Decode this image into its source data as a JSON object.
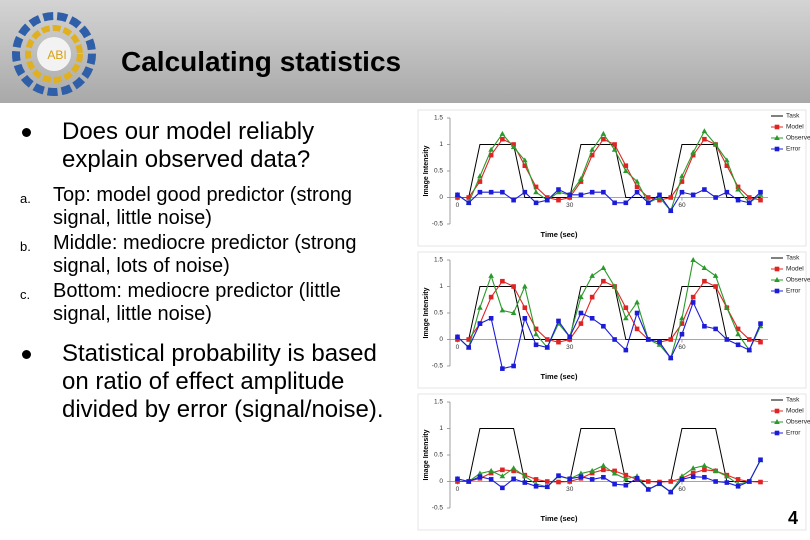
{
  "header": {
    "title": "Calculating statistics",
    "logo": "ABI"
  },
  "bullets": [
    {
      "text": "Does our model reliably explain observed data?",
      "items": [
        {
          "marker": "a.",
          "text": "Top: model good predictor (strong signal, little noise)"
        },
        {
          "marker": "b.",
          "text": "Middle: mediocre predictor (strong signal, lots of noise)"
        },
        {
          "marker": "c.",
          "text": "Bottom: mediocre predictor (little signal, little noise)"
        }
      ]
    },
    {
      "text": "Statistical probability is based on ratio of effect amplitude divided by error (signal/noise).",
      "items": []
    }
  ],
  "page_number": "4",
  "charts": [
    {
      "type": "line",
      "ylabel": "Image Intensity",
      "xlabel": "Time (sec)",
      "xlim": [
        -2,
        83
      ],
      "ylim": [
        -0.5,
        1.5
      ],
      "xticks": [
        0,
        30,
        60
      ],
      "yticks": [
        1.5,
        1,
        0.5,
        0,
        -0.5
      ],
      "x": [
        0,
        3,
        6,
        9,
        12,
        15,
        18,
        21,
        24,
        27,
        30,
        33,
        36,
        39,
        42,
        45,
        48,
        51,
        54,
        57,
        60,
        63,
        66,
        69,
        72,
        75,
        78,
        81
      ],
      "series": [
        {
          "name": "Task",
          "color": "#000000",
          "marker": "none",
          "values": [
            0,
            0,
            1,
            1,
            1,
            1,
            0,
            0,
            0,
            0,
            0,
            1,
            1,
            1,
            1,
            0,
            0,
            0,
            0,
            0,
            1,
            1,
            1,
            1,
            0,
            0,
            0,
            0
          ]
        },
        {
          "name": "Model",
          "color": "#e02424",
          "marker": "square",
          "values": [
            0,
            0,
            0.3,
            0.8,
            1.1,
            1,
            0.6,
            0.2,
            0,
            -0.05,
            0,
            0.3,
            0.8,
            1.1,
            1,
            0.6,
            0.2,
            0,
            -0.05,
            0,
            0.3,
            0.8,
            1.1,
            1,
            0.6,
            0.2,
            0,
            -0.05
          ]
        },
        {
          "name": "Observed",
          "color": "#2a9a2a",
          "marker": "triangle",
          "values": [
            0.05,
            -0.1,
            0.4,
            0.9,
            1.2,
            0.95,
            0.7,
            0.1,
            -0.05,
            0.1,
            0.05,
            0.35,
            0.9,
            1.2,
            0.9,
            0.5,
            0.3,
            -0.1,
            0,
            -0.25,
            0.4,
            0.85,
            1.25,
            1,
            0.7,
            0.15,
            -0.1,
            0.05
          ]
        },
        {
          "name": "Error",
          "color": "#1c1cd8",
          "marker": "square",
          "values": [
            0.05,
            -0.1,
            0.1,
            0.1,
            0.1,
            -0.05,
            0.1,
            -0.1,
            -0.05,
            0.15,
            0.05,
            0.05,
            0.1,
            0.1,
            -0.1,
            -0.1,
            0.1,
            -0.1,
            0.05,
            -0.25,
            0.1,
            0.05,
            0.15,
            0,
            0.1,
            -0.05,
            -0.1,
            0.1
          ]
        }
      ]
    },
    {
      "type": "line",
      "ylabel": "Image Intensity",
      "xlabel": "Time (sec)",
      "xlim": [
        -2,
        83
      ],
      "ylim": [
        -0.5,
        1.5
      ],
      "xticks": [
        0,
        30,
        60
      ],
      "yticks": [
        1.5,
        1,
        0.5,
        0,
        -0.5
      ],
      "x": [
        0,
        3,
        6,
        9,
        12,
        15,
        18,
        21,
        24,
        27,
        30,
        33,
        36,
        39,
        42,
        45,
        48,
        51,
        54,
        57,
        60,
        63,
        66,
        69,
        72,
        75,
        78,
        81
      ],
      "series": [
        {
          "name": "Task",
          "color": "#000000",
          "marker": "none",
          "values": [
            0,
            0,
            1,
            1,
            1,
            1,
            0,
            0,
            0,
            0,
            0,
            1,
            1,
            1,
            1,
            0,
            0,
            0,
            0,
            0,
            1,
            1,
            1,
            1,
            0,
            0,
            0,
            0
          ]
        },
        {
          "name": "Model",
          "color": "#e02424",
          "marker": "square",
          "values": [
            0,
            0,
            0.3,
            0.8,
            1.1,
            1,
            0.6,
            0.2,
            0,
            -0.05,
            0,
            0.3,
            0.8,
            1.1,
            1,
            0.6,
            0.2,
            0,
            -0.05,
            0,
            0.3,
            0.8,
            1.1,
            1,
            0.6,
            0.2,
            0,
            -0.05
          ]
        },
        {
          "name": "Observed",
          "color": "#2a9a2a",
          "marker": "triangle",
          "values": [
            0.05,
            -0.15,
            0.6,
            1.2,
            0.55,
            0.5,
            1,
            0.1,
            -0.15,
            0.3,
            0.05,
            0.8,
            1.2,
            1.35,
            1,
            0.4,
            0.7,
            0,
            -0.1,
            -0.35,
            0.4,
            1.5,
            1.35,
            1.2,
            0.6,
            0.1,
            -0.2,
            0.25
          ]
        },
        {
          "name": "Error",
          "color": "#1c1cd8",
          "marker": "square",
          "values": [
            0.05,
            -0.15,
            0.3,
            0.4,
            -0.55,
            -0.5,
            0.4,
            -0.1,
            -0.15,
            0.35,
            0.05,
            0.5,
            0.4,
            0.25,
            0,
            -0.2,
            0.5,
            0,
            -0.05,
            -0.35,
            0.1,
            0.7,
            0.25,
            0.2,
            0,
            -0.1,
            -0.2,
            0.3
          ]
        }
      ]
    },
    {
      "type": "line",
      "ylabel": "Image Intensity",
      "xlabel": "Time (sec)",
      "xlim": [
        -2,
        83
      ],
      "ylim": [
        -0.5,
        1.5
      ],
      "xticks": [
        0,
        30,
        60
      ],
      "yticks": [
        1.5,
        1,
        0.5,
        0,
        -0.5
      ],
      "x": [
        0,
        3,
        6,
        9,
        12,
        15,
        18,
        21,
        24,
        27,
        30,
        33,
        36,
        39,
        42,
        45,
        48,
        51,
        54,
        57,
        60,
        63,
        66,
        69,
        72,
        75,
        78,
        81
      ],
      "series": [
        {
          "name": "Task",
          "color": "#000000",
          "marker": "none",
          "values": [
            0,
            0,
            1,
            1,
            1,
            1,
            0,
            0,
            0,
            0,
            0,
            1,
            1,
            1,
            1,
            0,
            0,
            0,
            0,
            0,
            1,
            1,
            1,
            1,
            0,
            0,
            0,
            0
          ]
        },
        {
          "name": "Model",
          "color": "#e02424",
          "marker": "square",
          "values": [
            0,
            0,
            0.06,
            0.16,
            0.22,
            0.2,
            0.12,
            0.04,
            0,
            -0.01,
            0,
            0.06,
            0.16,
            0.22,
            0.2,
            0.12,
            0.04,
            0,
            -0.01,
            0,
            0.06,
            0.16,
            0.22,
            0.2,
            0.12,
            0.04,
            0,
            -0.01
          ]
        },
        {
          "name": "Observed",
          "color": "#2a9a2a",
          "marker": "triangle",
          "values": [
            0.05,
            0,
            0.15,
            0.2,
            0.1,
            0.25,
            0.1,
            -0.05,
            -0.1,
            0.1,
            0.05,
            0.15,
            0.2,
            0.3,
            0.15,
            0.05,
            0.1,
            -0.15,
            -0.05,
            -0.2,
            0.1,
            0.25,
            0.3,
            0.2,
            0.1,
            -0.05,
            0,
            0.4
          ]
        },
        {
          "name": "Error",
          "color": "#1c1cd8",
          "marker": "square",
          "values": [
            0.05,
            0,
            0.09,
            0.04,
            -0.12,
            0.05,
            -0.02,
            -0.09,
            -0.1,
            0.11,
            0.05,
            0.09,
            0.04,
            0.08,
            -0.05,
            -0.07,
            0.06,
            -0.15,
            -0.04,
            -0.2,
            0.04,
            0.09,
            0.08,
            0,
            -0.02,
            -0.09,
            0,
            0.41
          ]
        }
      ]
    }
  ]
}
